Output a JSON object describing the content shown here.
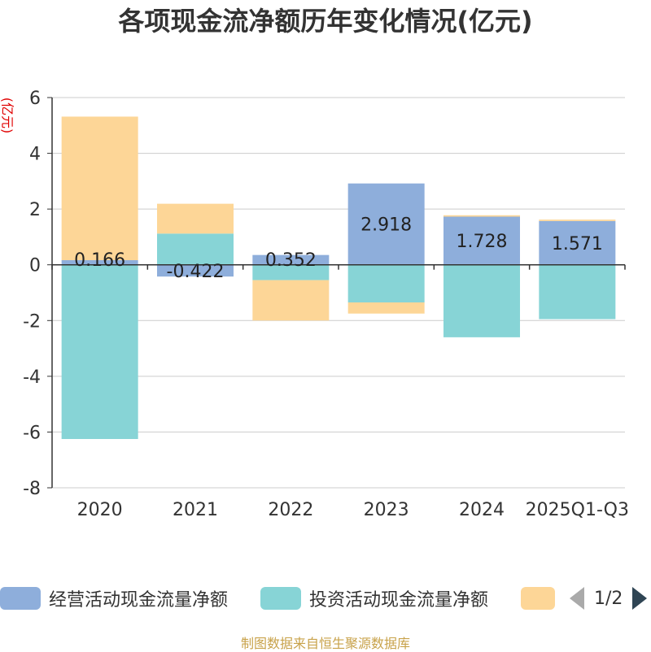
{
  "title": "各项现金流净额历年变化情况(亿元)",
  "unit_label": "(亿元)",
  "source": "制图数据来自恒生聚源数据库",
  "legend": {
    "items": [
      {
        "label": "经营活动现金流量净额",
        "color": "#8eaedb"
      },
      {
        "label": "投资活动现金流量净额",
        "color": "#87d4d6"
      },
      {
        "label": "",
        "color": "#fdd697"
      }
    ],
    "page_indicator": "1/2"
  },
  "chart_data": {
    "type": "bar",
    "stacked": true,
    "categories": [
      "2020",
      "2021",
      "2022",
      "2023",
      "2024",
      "2025Q1-Q3"
    ],
    "ylim": [
      -8,
      6
    ],
    "yticks": [
      6,
      4,
      2,
      0,
      -2,
      -4,
      -6,
      -8
    ],
    "series": [
      {
        "name": "经营活动现金流量净额",
        "color": "#8eaedb",
        "values": [
          0.166,
          -0.422,
          0.352,
          2.918,
          1.728,
          1.571
        ],
        "labels": [
          "0.166",
          "-0.422",
          "0.352",
          "2.918",
          "1.728",
          "1.571"
        ]
      },
      {
        "name": "投资活动现金流量净额",
        "color": "#87d4d6",
        "values": [
          -6.25,
          1.12,
          -0.55,
          -1.35,
          -2.6,
          -1.95
        ]
      },
      {
        "name": "",
        "color": "#fdd697",
        "values": [
          5.15,
          1.07,
          -1.45,
          -0.4,
          0.05,
          0.05
        ]
      }
    ]
  }
}
